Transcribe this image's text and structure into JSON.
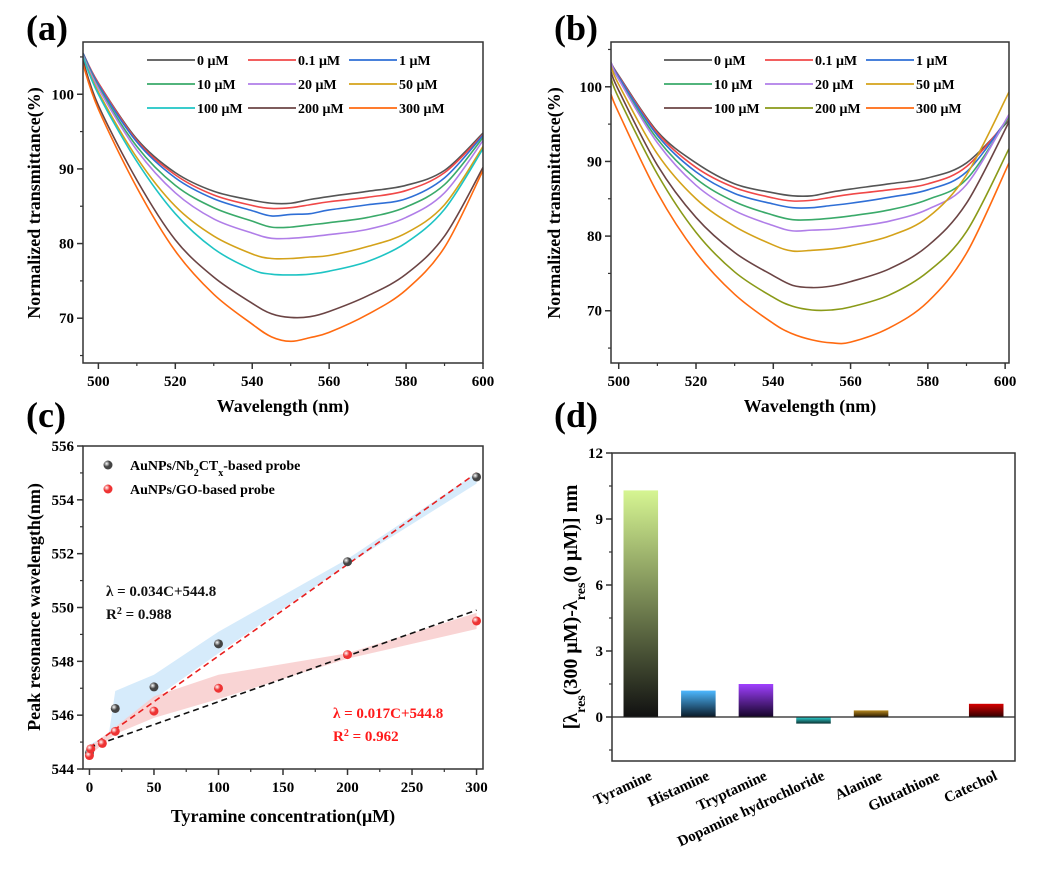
{
  "panels": {
    "a": {
      "label": "(a)"
    },
    "b": {
      "label": "(b)"
    },
    "c": {
      "label": "(c)"
    },
    "d": {
      "label": "(d)"
    }
  },
  "chart_data": [
    {
      "id": "a",
      "type": "line",
      "xlabel": "Wavelength (nm)",
      "ylabel": "Normalized transmittance(%)",
      "xlim": [
        496,
        600
      ],
      "ylim": [
        64,
        107
      ],
      "xticks": [
        500,
        520,
        540,
        560,
        580,
        600
      ],
      "yticks": [
        70,
        80,
        90,
        100
      ],
      "grid": false,
      "legend_placement": "top",
      "x": [
        496,
        500,
        510,
        520,
        530,
        540,
        545,
        550,
        555,
        560,
        570,
        580,
        590,
        600
      ],
      "series": [
        {
          "name": "0 μM",
          "color": "#555555",
          "values": [
            105.5,
            101.5,
            94,
            89.5,
            87,
            85.8,
            85.4,
            85.4,
            85.9,
            86.3,
            87,
            87.8,
            89.8,
            94.8
          ]
        },
        {
          "name": "0.1 μM",
          "color": "#f04848",
          "values": [
            105.5,
            101.5,
            93.8,
            89.2,
            86.5,
            85.1,
            84.7,
            84.8,
            85.2,
            85.6,
            86.2,
            87.1,
            89.5,
            94.6
          ]
        },
        {
          "name": "1 μM",
          "color": "#2f6fd6",
          "values": [
            105.5,
            101.3,
            93.6,
            88.8,
            86,
            84.4,
            83.7,
            83.9,
            84,
            84.5,
            85.2,
            86,
            88.8,
            94.5
          ]
        },
        {
          "name": "10 μM",
          "color": "#3aaa6a",
          "values": [
            105.3,
            101,
            93,
            87.8,
            84.8,
            83,
            82.2,
            82.2,
            82.5,
            82.8,
            83.5,
            84.9,
            87.9,
            94.2
          ]
        },
        {
          "name": "20 μM",
          "color": "#b07ee8",
          "values": [
            105.2,
            100.8,
            92.5,
            86.8,
            83.3,
            81.4,
            80.7,
            80.7,
            80.9,
            81.2,
            81.9,
            83.5,
            86.8,
            93.8
          ]
        },
        {
          "name": "50 μM",
          "color": "#d4a21a",
          "values": [
            105,
            100.3,
            91.5,
            85,
            81,
            78.6,
            78,
            78,
            78.2,
            78.4,
            79.6,
            81.4,
            85.2,
            93
          ]
        },
        {
          "name": "100 μM",
          "color": "#1ec4c4",
          "values": [
            105,
            100,
            91,
            84,
            79.3,
            76.5,
            75.9,
            75.8,
            75.9,
            76.3,
            77.6,
            80.1,
            84.6,
            92.7
          ]
        },
        {
          "name": "200 μM",
          "color": "#6b4444",
          "values": [
            104.5,
            98.5,
            88.5,
            80.5,
            75.5,
            72,
            70.6,
            70.1,
            70.2,
            70.9,
            73,
            75.9,
            81,
            90.2
          ]
        },
        {
          "name": "300 μM",
          "color": "#ff6a10",
          "values": [
            104,
            98,
            87.5,
            79,
            73.2,
            69.2,
            67.5,
            66.9,
            67.4,
            68.1,
            70.5,
            73.8,
            79.5,
            89.8
          ]
        }
      ]
    },
    {
      "id": "b",
      "type": "line",
      "xlabel": "Wavelength (nm)",
      "ylabel": "Normalized transmittance(%)",
      "xlim": [
        498,
        601
      ],
      "ylim": [
        63,
        106
      ],
      "xticks": [
        500,
        520,
        540,
        560,
        580,
        600
      ],
      "yticks": [
        70,
        80,
        90,
        100
      ],
      "grid": false,
      "legend_placement": "top",
      "x": [
        498,
        500,
        510,
        520,
        530,
        540,
        545,
        550,
        555,
        560,
        570,
        580,
        590,
        601
      ],
      "series": [
        {
          "name": "0 μM",
          "color": "#555555",
          "values": [
            103.2,
            101.5,
            94,
            89.8,
            87,
            85.8,
            85.4,
            85.4,
            85.9,
            86.3,
            87,
            87.8,
            89.8,
            95.5
          ]
        },
        {
          "name": "0.1 μM",
          "color": "#f04848",
          "values": [
            103.2,
            101.4,
            93.8,
            89.2,
            86.5,
            85.1,
            84.7,
            84.8,
            85.2,
            85.6,
            86.2,
            87,
            89.3,
            95.8
          ]
        },
        {
          "name": "1 μM",
          "color": "#2f6fd6",
          "values": [
            103.2,
            101.3,
            93.5,
            88.6,
            85.7,
            84.3,
            83.8,
            83.8,
            84.1,
            84.4,
            85.2,
            86.2,
            88.6,
            96
          ]
        },
        {
          "name": "10 μM",
          "color": "#3aaa6a",
          "values": [
            103,
            101,
            93,
            87.7,
            84.6,
            82.8,
            82.2,
            82.2,
            82.4,
            82.7,
            83.5,
            84.9,
            87.6,
            96
          ]
        },
        {
          "name": "20 μM",
          "color": "#b07ee8",
          "values": [
            103.3,
            101,
            92.5,
            86.8,
            83.4,
            81.4,
            80.7,
            80.8,
            80.9,
            81.2,
            82,
            83.6,
            86.9,
            96.3
          ]
        },
        {
          "name": "50 μM",
          "color": "#d4a21a",
          "values": [
            102.8,
            100.3,
            91,
            85,
            81.3,
            78.8,
            78,
            78.1,
            78.3,
            78.7,
            80,
            82.5,
            88.2,
            99.3
          ]
        },
        {
          "name": "100 μM",
          "color": "#6b4444",
          "values": [
            102,
            99.5,
            89.5,
            82.5,
            77.8,
            74.7,
            73.4,
            73.1,
            73.3,
            73.9,
            75.6,
            78.7,
            84.4,
            95.3
          ]
        },
        {
          "name": "200 μM",
          "color": "#8a9a18",
          "values": [
            101.2,
            98.5,
            88.3,
            80.5,
            75.2,
            71.8,
            70.6,
            70.1,
            70.1,
            70.5,
            72.1,
            75.2,
            80.6,
            91.7
          ]
        },
        {
          "name": "300 μM",
          "color": "#ff6a10",
          "values": [
            99,
            96.5,
            85.8,
            77.8,
            72.2,
            68.3,
            66.9,
            66.1,
            65.7,
            65.8,
            67.7,
            71.2,
            77.7,
            89.8
          ]
        }
      ]
    },
    {
      "id": "c",
      "type": "scatter",
      "xlabel": "Tyramine concentration(μM)",
      "ylabel": "Peak resonance wavelength(nm)",
      "xlim": [
        -5,
        305
      ],
      "ylim": [
        544,
        556
      ],
      "xticks": [
        0,
        50,
        100,
        150,
        200,
        250,
        300
      ],
      "yticks": [
        544,
        546,
        548,
        550,
        552,
        554,
        556
      ],
      "grid": false,
      "legend_placement": "top-left",
      "series": [
        {
          "legend_parts": [
            "AuNPs/Nb",
            "2",
            "CT",
            "x",
            "-based probe"
          ],
          "color": "#444444",
          "band_color": "#cfe8fa",
          "x": [
            0,
            20,
            50,
            100,
            200,
            300
          ],
          "y": [
            544.6,
            546.25,
            547.05,
            548.65,
            551.7,
            554.85
          ],
          "band_upper": [
            [
              0,
              544.9
            ],
            [
              15,
              545.3
            ],
            [
              20,
              546.9
            ],
            [
              50,
              547.5
            ],
            [
              100,
              549.1
            ],
            [
              200,
              551.8
            ],
            [
              300,
              555.0
            ]
          ],
          "band_lower": [
            [
              0,
              544.5
            ],
            [
              20,
              545.5
            ],
            [
              50,
              546.6
            ],
            [
              100,
              548.3
            ],
            [
              200,
              551.6
            ],
            [
              300,
              554.6
            ]
          ],
          "fit": {
            "slope": 0.034,
            "intercept": 544.8,
            "color": "#e82020",
            "equation": "λ = 0.034C+544.8",
            "r2_parts": [
              "R",
              "2",
              " = 0.988"
            ],
            "label_color": "#111111"
          }
        },
        {
          "legend_parts": [
            "AuNPs/GO-based probe"
          ],
          "color": "#ee3333",
          "band_color": "#f8cccc",
          "x": [
            0,
            1,
            10,
            20,
            50,
            100,
            200,
            300
          ],
          "y": [
            544.5,
            544.75,
            544.95,
            545.4,
            546.15,
            547.0,
            548.25,
            549.5
          ],
          "band_upper": [
            [
              0,
              544.8
            ],
            [
              50,
              546.7
            ],
            [
              100,
              547.5
            ],
            [
              200,
              548.3
            ],
            [
              300,
              549.8
            ]
          ],
          "band_lower": [
            [
              0,
              544.5
            ],
            [
              20,
              545.3
            ],
            [
              50,
              545.9
            ],
            [
              100,
              546.6
            ],
            [
              200,
              548.1
            ],
            [
              300,
              549.2
            ]
          ],
          "fit": {
            "slope": 0.017,
            "intercept": 544.8,
            "color": "#111111",
            "equation": "λ = 0.017C+544.8",
            "r2_parts": [
              "R",
              "2",
              " = 0.962"
            ],
            "label_color": "#ff1a1a"
          }
        }
      ]
    },
    {
      "id": "d",
      "type": "bar",
      "ylabel_parts": [
        "[λ",
        "res",
        "(300 μM)-λ",
        "res",
        "(0 μM)] nm"
      ],
      "ylim": [
        -2,
        12
      ],
      "yticks": [
        0,
        3,
        6,
        9,
        12
      ],
      "grid": false,
      "categories": [
        "Tyramine",
        "Histamine",
        "Tryptamine",
        "Dopamine hydrochloride",
        "Alanine",
        "Glutathione",
        "Catechol"
      ],
      "values": [
        10.3,
        1.2,
        1.5,
        -0.3,
        0.3,
        0,
        0.6
      ],
      "colors": [
        [
          "#d6f592",
          "#111111"
        ],
        [
          "#4db8ff",
          "#0a1a28"
        ],
        [
          "#a040ff",
          "#150428"
        ],
        [
          "#30d8d8",
          "#0a3030"
        ],
        [
          "#b88a20",
          "#2a1a00"
        ],
        [
          "#888888",
          "#222222"
        ],
        [
          "#d80000",
          "#300000"
        ]
      ]
    }
  ]
}
